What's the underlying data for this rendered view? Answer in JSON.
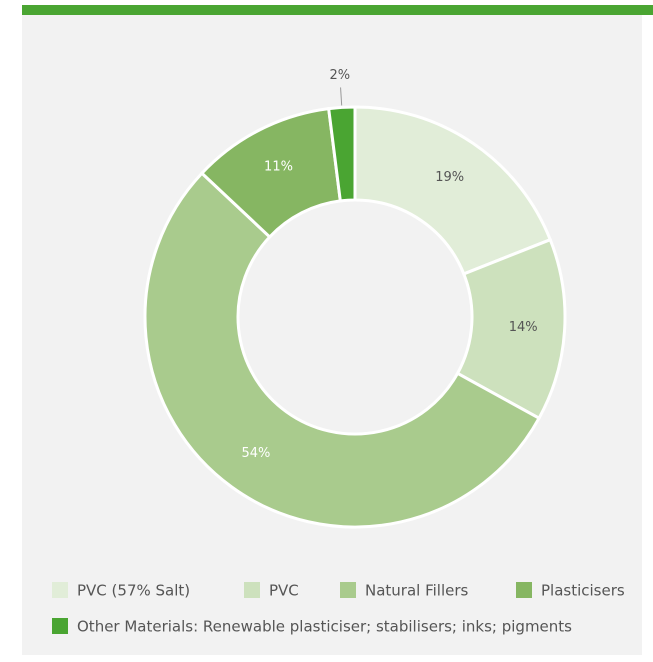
{
  "chart_data": {
    "type": "donut",
    "categories": [
      "PVC (57% Salt)",
      "PVC",
      "Natural Fillers",
      "Plasticisers",
      "Other Materials: Renewable plasticiser; stabilisers; inks; pigments"
    ],
    "values": [
      19,
      14,
      54,
      11,
      2
    ],
    "value_labels": [
      "19%",
      "14%",
      "54%",
      "11%",
      "2%"
    ],
    "colors": [
      "#e1edd8",
      "#cde1bd",
      "#a9cb8d",
      "#86b662",
      "#4aa532"
    ]
  }
}
